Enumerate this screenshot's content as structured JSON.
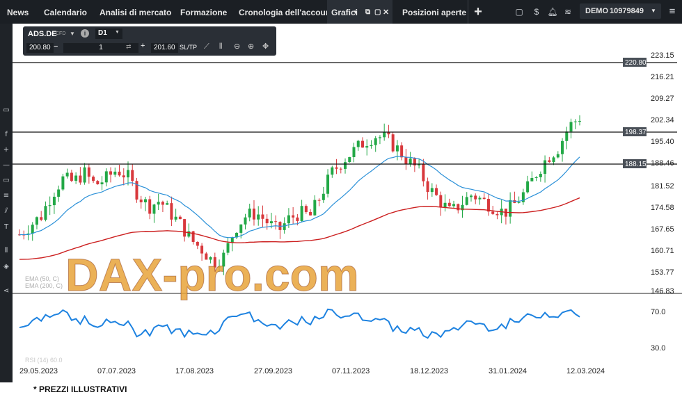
{
  "nav": {
    "tabs": [
      "News",
      "Calendario",
      "Analisi di mercato",
      "Formazione",
      "Cronologia dell'account",
      "Grafici",
      "Posizioni aperte"
    ],
    "add_label": "+",
    "account_mode": "DEMO",
    "account_number": "10979849"
  },
  "toolbar": {
    "symbol": "ADS.DE",
    "symbol_type": "CFD",
    "timeframe": "D1",
    "bid": "200.80",
    "quantity": "1",
    "ask": "201.60",
    "sltp": "SL/TP"
  },
  "price_axis": [
    "223.15",
    "216.21",
    "209.27",
    "202.34",
    "195.40",
    "188.46",
    "181.52",
    "174.58",
    "167.65",
    "160.71",
    "153.77",
    "146.83"
  ],
  "rsi_axis": [
    "70.0",
    "30.0"
  ],
  "date_axis": [
    "29.05.2023",
    "07.07.2023",
    "17.08.2023",
    "27.09.2023",
    "07.11.2023",
    "18.12.2023",
    "31.01.2024",
    "12.03.2024"
  ],
  "levels": [
    {
      "value": "220.80"
    },
    {
      "value": "198.37"
    },
    {
      "value": "188.15"
    }
  ],
  "legend": {
    "ema50": "EMA (50, C)",
    "ema200": "EMA (200, C)",
    "rsi": "RSI (14) 60.0"
  },
  "watermark": "DAX-pro.com",
  "footnote": "* PREZZI ILLUSTRATIVI",
  "colors": {
    "up": "#22a846",
    "down": "#d8383c",
    "ema50": "#2a90d8",
    "ema200": "#cc2020",
    "rsi": "#1d82e0",
    "topbar": "#1b1f24"
  }
}
